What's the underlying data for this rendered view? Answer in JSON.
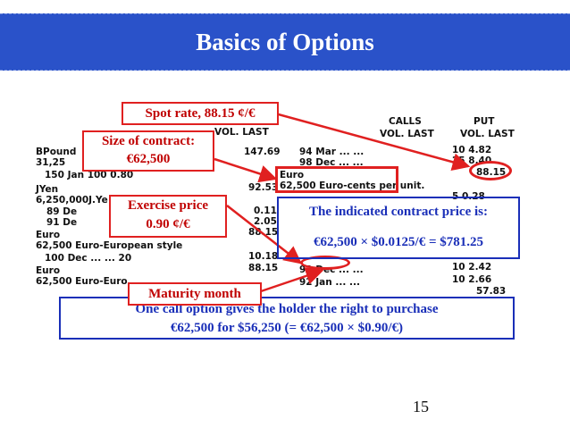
{
  "slide": {
    "title": "Basics of Options",
    "page_number": "15"
  },
  "listing": {
    "header_calls": "CALLS",
    "header_put": "PUT",
    "header_vol_last": "VOL.  LAST",
    "header_vol_last_right": "VOL.   LAST",
    "header_vol_last_put": "VOL.   LAST",
    "row_bpound": "BPound",
    "row_bpound_size": "31,25",
    "row_150": "150    Jan        100     0.80",
    "row_jyen": "JYen",
    "row_jyen_size": "6,250,000J.Ye",
    "row_89": "89    De",
    "row_91": "91    De",
    "row_euro1": "Euro",
    "row_euro1_contract": "62,500 Euro-European style",
    "row_100": "100    Dec        ...      ...       20",
    "row_euro2": "Euro",
    "row_euro2_contract": "62,500 Euro-Euro",
    "mid_14769": "147.69",
    "mid_9253": "92.53",
    "mid_011": "0.11",
    "mid_205": "2.05",
    "mid_8815": "88.15",
    "mid_1018": "10.18",
    "mid_8815b": "88.15",
    "r_94": "94      Mar          ...      ...",
    "r_98": "98      Dec          ...      ...",
    "r_euro": "Euro",
    "r_euro_contract": "62,500 Euro-cents  per  unit.",
    "r_92dec": "92      Dec          ...      ...",
    "r_92jan": "92      Jan          ...      ...",
    "p_10": "10     4.82",
    "p_25": "25     8.40",
    "p_8815": "88.15",
    "p_5": "5      0.28",
    "p_242": "10     2.42",
    "p_266": "10     2.66",
    "p_5783": "57.83"
  },
  "callouts": {
    "spot_rate": "Spot rate, 88.15 ¢/€",
    "size_line1": "Size of contract:",
    "size_line2": "€62,500",
    "exercise_line1": "Exercise price",
    "exercise_line2": "0.90 ¢/€",
    "indicated_line1": "The indicated contract price is:",
    "indicated_line2": "€62,500 × $0.0125/€ = $781.25",
    "maturity": "Maturity month",
    "one_call_line1": "One call option gives the holder the right to purchase",
    "one_call_line2": "€62,500 for $56,250 (= €62,500 × $0.90/€)"
  },
  "colors": {
    "title_bg": "#2a52c9",
    "red": "#e02020",
    "blue": "#1a2fb8"
  }
}
